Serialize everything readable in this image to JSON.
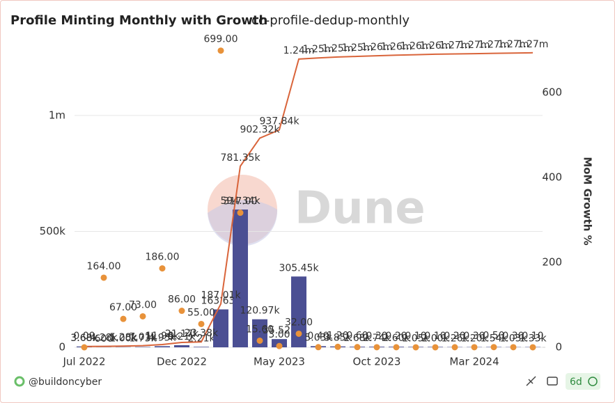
{
  "chart_data": {
    "type": "bar-line-scatter",
    "title": "Profile Minting Monthly with Growth",
    "subtitle": "cc-profile-dedup-monthly",
    "y2_label": "MoM Growth %",
    "watermark": "Dune",
    "footer": {
      "author": "@buildoncyber",
      "age": "6d"
    },
    "categories": [
      "Jul 2022",
      null,
      null,
      null,
      null,
      "Dec 2022",
      null,
      null,
      null,
      null,
      "May 2023",
      null,
      null,
      null,
      null,
      "Oct 2023",
      null,
      null,
      null,
      null,
      "Mar 2024",
      null,
      null,
      null
    ],
    "ylim": [
      0,
      1300000
    ],
    "yticks": [
      0,
      {
        "value": 500000,
        "label": "500k"
      },
      {
        "value": 1000000,
        "label": "1m"
      }
    ],
    "y2lim": [
      0,
      710
    ],
    "y2ticks": [
      0,
      200,
      400,
      600
    ],
    "grid": true,
    "series": [
      {
        "name": "Minted",
        "kind": "bar",
        "color": "#4b4f93",
        "values": [
          3678,
          600,
          1000,
          1730,
          4950,
          9210,
          2212,
          163630,
          594340,
          120970,
          35520,
          305450,
          5030,
          3850,
          2680,
          2740,
          2600,
          2050,
          2000,
          1260,
          1200,
          1540,
          1030,
          1330
        ],
        "value_labels": [
          "3.68k",
          "600",
          "1.00k",
          "1.73k",
          "4.95k",
          "9.21k",
          "2.21k",
          "163.63k",
          "594.34k",
          "120.97k",
          "35.52k",
          "305.45k",
          "5.03k",
          "3.85k",
          "2.68k",
          "2.74k",
          "2.60k",
          "2.05k",
          "2.00k",
          "1.26k",
          "1.20k",
          "1.54k",
          "1.03k",
          "1.33k"
        ]
      },
      {
        "name": "Cumulative",
        "kind": "line",
        "color": "#d9643a",
        "values": [
          3678,
          4278,
          5278,
          7008,
          11958,
          21168,
          23380,
          187010,
          781350,
          902320,
          937840,
          1243290,
          1248320,
          1252170,
          1254850,
          1257590,
          1260190,
          1262240,
          1264240,
          1265500,
          1266700,
          1268240,
          1269270,
          1270600
        ],
        "value_labels": [
          "3.68k",
          "4.28k",
          "5.28k",
          "7.01k",
          "11.96k",
          "21.17k",
          "23.38k",
          "187.01k",
          "781.35k",
          "902.32k",
          "937.84k",
          "1.24m",
          "1.25m",
          "1.25m",
          "1.25m",
          "1.26m",
          "1.26m",
          "1.26m",
          "1.26m",
          "1.27m",
          "1.27m",
          "1.27m",
          "1.27m",
          "1.27m"
        ]
      },
      {
        "name": "MoM Growth %",
        "kind": "scatter",
        "axis": "y2",
        "color": "#e8923a",
        "values": [
          0,
          164,
          67,
          73,
          186,
          86,
          55,
          699,
          317,
          15.6,
          3,
          32,
          0.4,
          1.2,
          0.6,
          0.3,
          0.2,
          0.1,
          0.1,
          0.2,
          0.3,
          0.5,
          0.3,
          0.1
        ],
        "value_labels": [
          "0.00",
          "164.00",
          "67.00",
          "73.00",
          "186.00",
          "86.00",
          "55.00",
          "699.00",
          "317.00",
          "15.60",
          "3.00",
          "32.00",
          "0.40",
          "1.20",
          "0.60",
          "0.30",
          "0.20",
          "0.10",
          "0.10",
          "0.20",
          "0.30",
          "0.50",
          "0.30",
          "0.10"
        ]
      }
    ]
  }
}
